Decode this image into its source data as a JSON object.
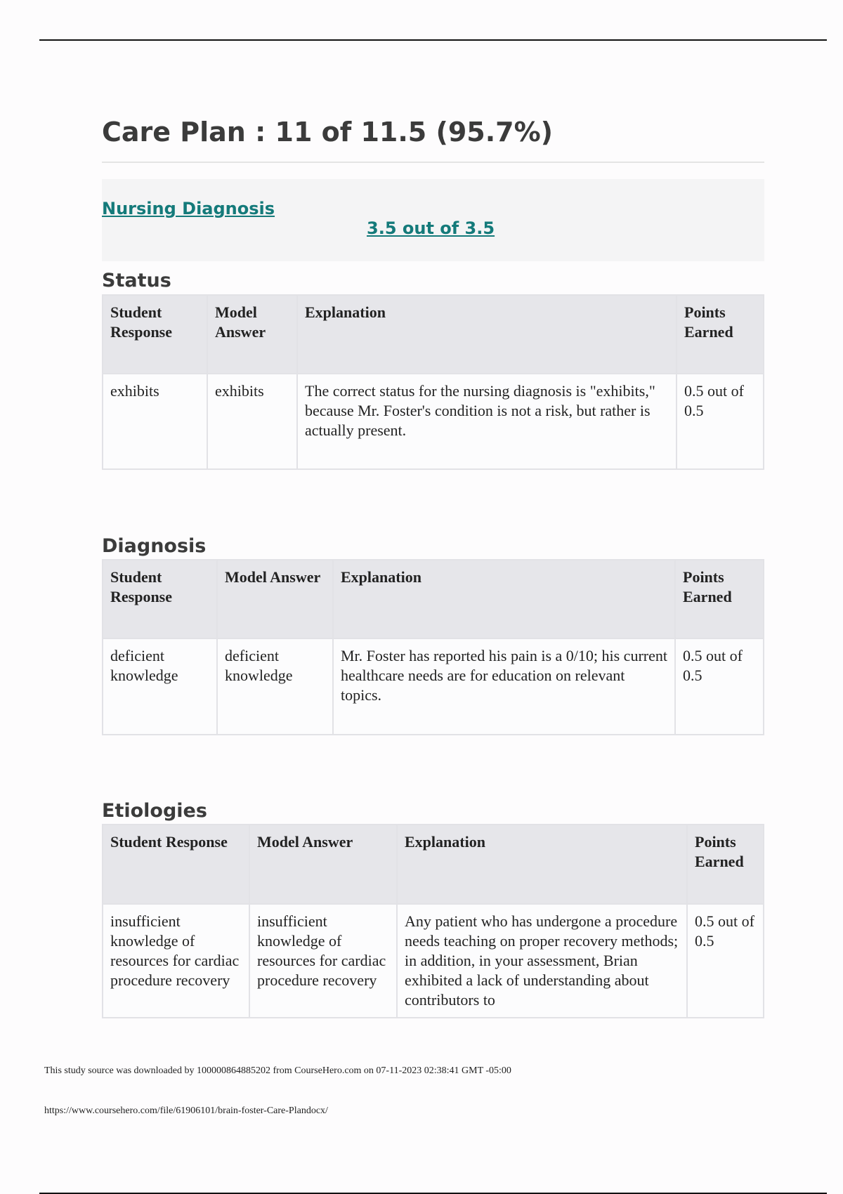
{
  "title": "Care Plan : 11 of 11.5 (95.7%)",
  "section": {
    "name": "Nursing Diagnosis",
    "score": "3.5 out of 3.5"
  },
  "headers_a": [
    "Student Response",
    "Model Answer",
    "Explanation",
    "Points Earned"
  ],
  "tables": [
    {
      "heading": "Status",
      "row": [
        "exhibits",
        "exhibits",
        "The correct status for the nursing diagnosis is \"exhibits,\" because Mr. Foster's condition is not a risk, but rather is actually present.",
        "0.5 out of 0.5"
      ]
    },
    {
      "heading": "Diagnosis",
      "row": [
        "deficient knowledge",
        "deficient knowledge",
        "Mr. Foster has reported his pain is a 0/10; his current healthcare needs are for education on relevant topics.",
        "0.5 out of 0.5"
      ]
    },
    {
      "heading": "Etiologies",
      "row": [
        "insufficient knowledge of resources for cardiac procedure recovery",
        "insufficient knowledge of resources for cardiac procedure recovery",
        "Any patient who has undergone a procedure needs teaching on proper recovery methods; in addition, in your assessment, Brian exhibited a lack of understanding about contributors to",
        "0.5 out of 0.5"
      ]
    }
  ],
  "footer": {
    "download_note": "This study source was downloaded by 100000864885202 from CourseHero.com on 07-11-2023 02:38:41 GMT -05:00",
    "url": "https://www.coursehero.com/file/61906101/brain-foster-Care-Plandocx/"
  }
}
